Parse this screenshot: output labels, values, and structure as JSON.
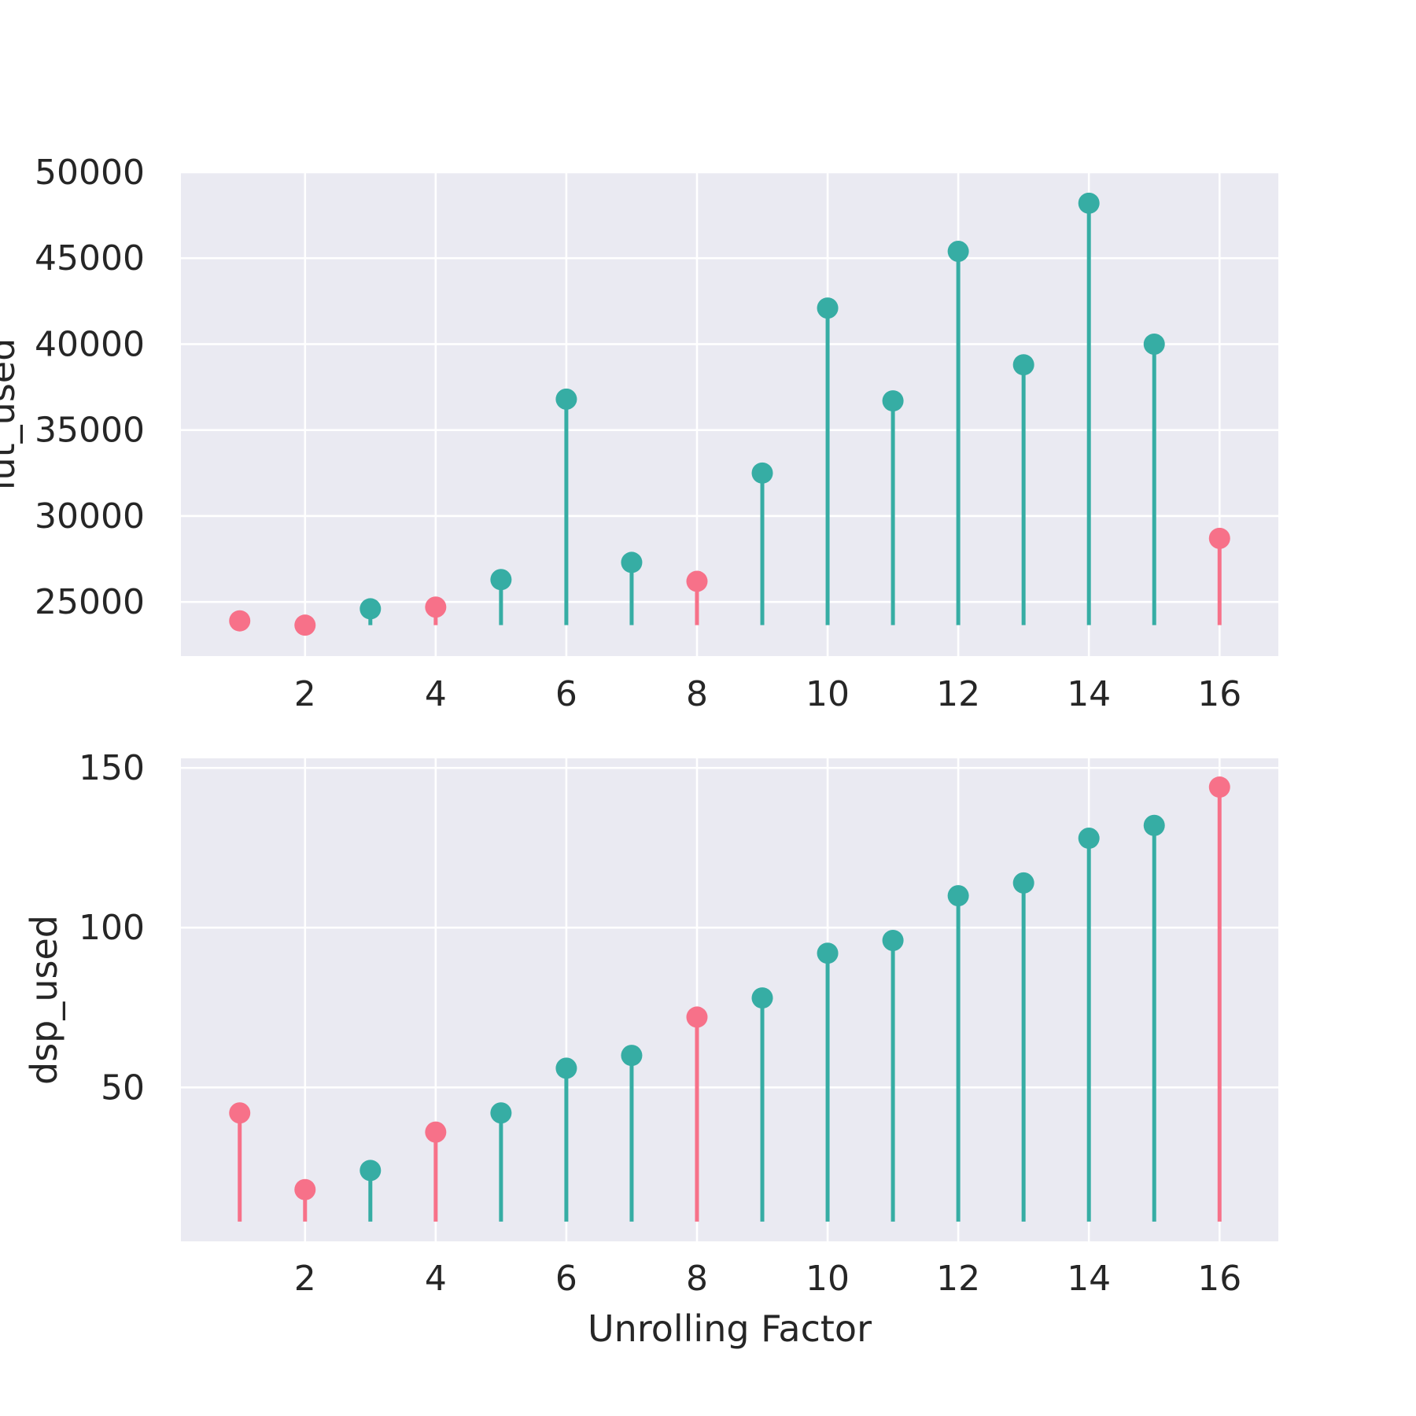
{
  "colors": {
    "panel_bg": "#eaeaf2",
    "grid": "#ffffff",
    "teal": "#36ada4",
    "pink": "#f77189",
    "text": "#262626"
  },
  "chart_data": [
    {
      "type": "stem",
      "title": "",
      "xlabel": "",
      "ylabel": "lut_used",
      "x": [
        1,
        2,
        3,
        4,
        5,
        6,
        7,
        8,
        9,
        10,
        11,
        12,
        13,
        14,
        15,
        16
      ],
      "values": [
        23900,
        23650,
        24600,
        24700,
        26300,
        36800,
        27300,
        26200,
        32500,
        42100,
        36700,
        45400,
        38800,
        48200,
        40000,
        28700
      ],
      "highlight": [
        true,
        true,
        false,
        true,
        false,
        false,
        false,
        true,
        false,
        false,
        false,
        false,
        false,
        false,
        false,
        true
      ],
      "baseline": 23650,
      "xticks": [
        2,
        4,
        6,
        8,
        10,
        12,
        14,
        16
      ],
      "yticks": [
        25000,
        30000,
        35000,
        40000,
        45000,
        50000
      ],
      "xlim": [
        0.1,
        16.9
      ],
      "ylim": [
        21850,
        50000
      ],
      "grid": true
    },
    {
      "type": "stem",
      "title": "",
      "xlabel": "Unrolling Factor",
      "ylabel": "dsp_used",
      "x": [
        1,
        2,
        3,
        4,
        5,
        6,
        7,
        8,
        9,
        10,
        11,
        12,
        13,
        14,
        15,
        16
      ],
      "values": [
        42,
        18,
        24,
        36,
        42,
        56,
        60,
        72,
        78,
        92,
        96,
        110,
        114,
        128,
        132,
        144
      ],
      "highlight": [
        true,
        true,
        false,
        true,
        false,
        false,
        false,
        true,
        false,
        false,
        false,
        false,
        false,
        false,
        false,
        true
      ],
      "baseline": 8,
      "xticks": [
        2,
        4,
        6,
        8,
        10,
        12,
        14,
        16
      ],
      "yticks": [
        50,
        100,
        150
      ],
      "xlim": [
        0.1,
        16.9
      ],
      "ylim": [
        1.8,
        153
      ],
      "grid": true
    }
  ]
}
